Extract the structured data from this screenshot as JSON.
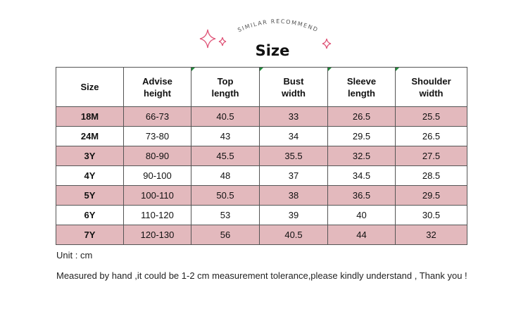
{
  "header": {
    "subtitle": "SIMILAR RECOMMEND",
    "title": "Size"
  },
  "decorations": {
    "sparkle_color": "#e0577a",
    "icons": [
      "sparkle-large-icon",
      "sparkle-small-icon",
      "sparkle-right-icon"
    ]
  },
  "table": {
    "columns": [
      "Size",
      "Advise height",
      "Top length",
      "Bust width",
      "Sleeve length",
      "Shoulder width"
    ],
    "rows": [
      [
        "18M",
        "66-73",
        "40.5",
        "33",
        "26.5",
        "25.5"
      ],
      [
        "24M",
        "73-80",
        "43",
        "34",
        "29.5",
        "26.5"
      ],
      [
        "3Y",
        "80-90",
        "45.5",
        "35.5",
        "32.5",
        "27.5"
      ],
      [
        "4Y",
        "90-100",
        "48",
        "37",
        "34.5",
        "28.5"
      ],
      [
        "5Y",
        "100-110",
        "50.5",
        "38",
        "36.5",
        "29.5"
      ],
      [
        "6Y",
        "110-120",
        "53",
        "39",
        "40",
        "30.5"
      ],
      [
        "7Y",
        "120-130",
        "56",
        "40.5",
        "44",
        "32"
      ]
    ],
    "stripe_color": "#e3b9bd"
  },
  "notes": {
    "unit": "Unit : cm",
    "disclaimer": "Measured by hand ,it could be 1-2 cm measurement tolerance,please kindly understand , Thank you !"
  }
}
